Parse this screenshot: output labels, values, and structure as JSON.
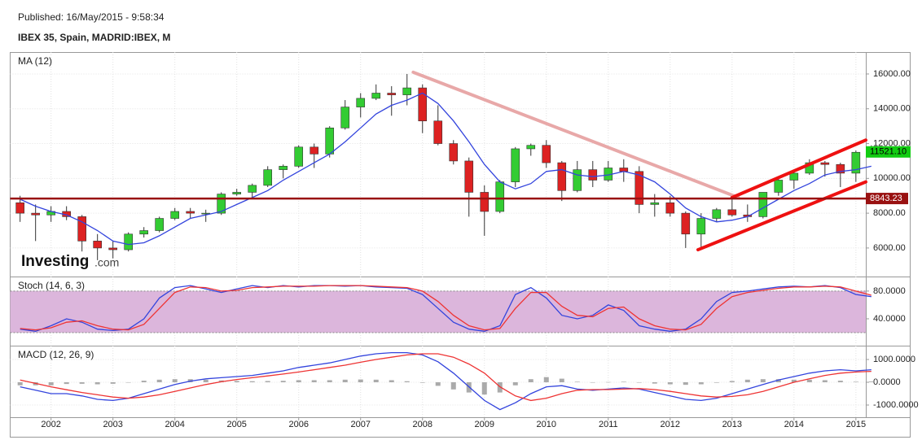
{
  "header": {
    "published": "Published: 16/May/2015 - 9:58:34",
    "title": "IBEX 35, Spain, MADRID:IBEX, M"
  },
  "logo": {
    "brand": "Investing",
    "suffix": ".com"
  },
  "chart_data": [
    {
      "type": "candlestick",
      "title": "MA (12)",
      "x": [
        2001.5,
        2001.75,
        2002,
        2002.25,
        2002.5,
        2002.75,
        2003,
        2003.25,
        2003.5,
        2003.75,
        2004,
        2004.25,
        2004.5,
        2004.75,
        2005,
        2005.25,
        2005.5,
        2005.75,
        2006,
        2006.25,
        2006.5,
        2006.75,
        2007,
        2007.25,
        2007.5,
        2007.75,
        2008,
        2008.25,
        2008.5,
        2008.75,
        2009,
        2009.25,
        2009.5,
        2009.75,
        2010,
        2010.25,
        2010.5,
        2010.75,
        2011,
        2011.25,
        2011.5,
        2011.75,
        2012,
        2012.25,
        2012.5,
        2012.75,
        2013,
        2013.25,
        2013.5,
        2013.75,
        2014,
        2014.25,
        2014.5,
        2014.75,
        2015,
        2015.25
      ],
      "open": [
        8600,
        8000,
        7900,
        8100,
        7800,
        6400,
        6000,
        5900,
        6800,
        7000,
        7700,
        8100,
        8000,
        8000,
        9100,
        9200,
        9600,
        10500,
        10700,
        11800,
        11400,
        12900,
        14100,
        14600,
        14900,
        14800,
        15200,
        13300,
        12000,
        11000,
        9200,
        8100,
        9800,
        11700,
        11900,
        10900,
        9300,
        10500,
        9900,
        10600,
        10400,
        8500,
        8600,
        8000,
        6800,
        7700,
        8200,
        7900,
        7800,
        9200,
        9900,
        10300,
        10900,
        10800,
        10300,
        11500
      ],
      "high": [
        9000,
        8500,
        8400,
        8400,
        7900,
        6800,
        6400,
        6900,
        7200,
        7800,
        8300,
        8300,
        8200,
        9200,
        9400,
        9700,
        10700,
        10800,
        11900,
        12000,
        13000,
        14500,
        14900,
        15400,
        15300,
        16000,
        15400,
        14200,
        12200,
        11200,
        9600,
        9900,
        11800,
        12000,
        12200,
        11000,
        11000,
        11000,
        11000,
        11100,
        10700,
        9100,
        9000,
        8100,
        8000,
        8300,
        8800,
        8500,
        9200,
        10000,
        10400,
        11100,
        11000,
        10900,
        11600,
        11900
      ],
      "low": [
        7500,
        6400,
        7500,
        7600,
        5800,
        5300,
        5400,
        5800,
        6600,
        6900,
        7600,
        7700,
        7500,
        7900,
        9000,
        8900,
        9500,
        10000,
        10600,
        10600,
        11200,
        12800,
        13500,
        14500,
        13600,
        14200,
        12600,
        11900,
        10800,
        7800,
        6700,
        8000,
        9500,
        11300,
        10600,
        8700,
        9200,
        9500,
        9800,
        9800,
        8000,
        7800,
        7800,
        6000,
        5900,
        7500,
        7800,
        7500,
        7700,
        9000,
        9400,
        10200,
        10100,
        9500,
        9800,
        11300
      ],
      "close": [
        8000,
        7900,
        8100,
        7800,
        6400,
        6000,
        5900,
        6800,
        7000,
        7700,
        8100,
        8000,
        8000,
        9100,
        9200,
        9600,
        10500,
        10700,
        11800,
        11400,
        12900,
        14100,
        14600,
        14900,
        14800,
        15200,
        13300,
        12000,
        11000,
        9200,
        8100,
        9800,
        11700,
        11900,
        10900,
        9300,
        10500,
        9900,
        10600,
        10400,
        8500,
        8600,
        8000,
        6800,
        7700,
        8200,
        7900,
        7800,
        9200,
        9900,
        10300,
        10900,
        10800,
        10300,
        11500,
        11521.1
      ],
      "up_color": "#33cc33",
      "down_color": "#dd2222",
      "ma": {
        "color": "#3344dd",
        "values": [
          8800,
          8400,
          8100,
          7900,
          7500,
          7000,
          6400,
          6200,
          6300,
          6700,
          7200,
          7700,
          7900,
          8100,
          8500,
          8900,
          9300,
          9900,
          10400,
          10900,
          11400,
          12100,
          12900,
          13700,
          14200,
          14500,
          14900,
          14300,
          13300,
          12100,
          10800,
          9800,
          9400,
          9700,
          10400,
          10500,
          10200,
          10100,
          10200,
          10400,
          10200,
          9800,
          9100,
          8300,
          7800,
          7500,
          7600,
          7800,
          8300,
          8800,
          9300,
          9700,
          10200,
          10400,
          10500,
          10700
        ]
      },
      "hline": {
        "value": 8843.23,
        "color": "#991111"
      },
      "last_price": {
        "value": 11521.1,
        "label": "11521.10",
        "color": "#11cc11"
      },
      "lines": [
        {
          "color": "#e8a8a8",
          "x": [
            2007.85,
            2013.1
          ],
          "y": [
            16100,
            8900
          ]
        },
        {
          "color": "#ee1111",
          "x": [
            2012.45,
            2015.16
          ],
          "y": [
            5900,
            9800
          ]
        },
        {
          "color": "#ee1111",
          "x": [
            2013.0,
            2015.16
          ],
          "y": [
            8900,
            12200
          ]
        }
      ],
      "xlim": [
        2001.34,
        2015.16
      ],
      "xticks": [
        2002,
        2003,
        2004,
        2005,
        2006,
        2007,
        2008,
        2009,
        2010,
        2011,
        2012,
        2013,
        2014,
        2015
      ],
      "ylim": [
        4360,
        17260
      ],
      "yticks": [
        {
          "value": 6000,
          "label": "6000.00"
        },
        {
          "value": 8000,
          "label": "8000.00"
        },
        {
          "value": 10000,
          "label": "10000.00"
        },
        {
          "value": 12000,
          "label": "12000.00"
        },
        {
          "value": 14000,
          "label": "14000.00"
        },
        {
          "value": 16000,
          "label": "16000.00"
        }
      ],
      "grid": true
    },
    {
      "type": "line",
      "title": "Stoch (14, 6, 3)",
      "band": [
        20,
        80
      ],
      "band_color": "#dcb6dc",
      "series": [
        {
          "color": "#3344dd",
          "values": [
            25,
            22,
            30,
            40,
            35,
            25,
            23,
            25,
            40,
            70,
            85,
            88,
            83,
            78,
            83,
            88,
            85,
            88,
            86,
            88,
            88,
            87,
            88,
            86,
            85,
            84,
            75,
            55,
            35,
            25,
            22,
            30,
            75,
            85,
            70,
            45,
            40,
            45,
            60,
            52,
            30,
            25,
            22,
            25,
            40,
            65,
            78,
            80,
            83,
            86,
            87,
            86,
            88,
            85,
            75,
            72
          ]
        },
        {
          "color": "#ee3333",
          "values": [
            26,
            24,
            27,
            35,
            37,
            30,
            25,
            24,
            32,
            55,
            78,
            86,
            85,
            80,
            81,
            85,
            86,
            87,
            87,
            87,
            88,
            88,
            88,
            87,
            86,
            85,
            80,
            65,
            45,
            30,
            24,
            26,
            55,
            78,
            78,
            58,
            45,
            43,
            55,
            57,
            40,
            30,
            25,
            24,
            32,
            55,
            72,
            78,
            81,
            84,
            86,
            86,
            87,
            86,
            80,
            74
          ]
        }
      ],
      "ylim": [
        1.2,
        101
      ],
      "yticks": [
        {
          "value": 40,
          "label": "40.0000"
        },
        {
          "value": 80,
          "label": "80.0000"
        }
      ],
      "grid": true
    },
    {
      "type": "macd",
      "title": "MACD (12, 26, 9)",
      "series": [
        {
          "color": "#3344dd",
          "values": [
            -200,
            -350,
            -500,
            -500,
            -600,
            -750,
            -800,
            -700,
            -500,
            -300,
            -100,
            50,
            150,
            200,
            250,
            300,
            400,
            500,
            650,
            750,
            850,
            1000,
            1150,
            1250,
            1300,
            1300,
            1200,
            900,
            400,
            -200,
            -800,
            -1200,
            -900,
            -500,
            -200,
            -150,
            -300,
            -350,
            -300,
            -250,
            -300,
            -450,
            -600,
            -750,
            -800,
            -700,
            -500,
            -300,
            -100,
            100,
            250,
            400,
            500,
            550,
            500,
            550
          ]
        },
        {
          "color": "#ee3333",
          "values": [
            100,
            -50,
            -200,
            -330,
            -450,
            -550,
            -650,
            -700,
            -650,
            -550,
            -400,
            -250,
            -100,
            20,
            120,
            200,
            280,
            360,
            450,
            550,
            650,
            750,
            880,
            1000,
            1100,
            1200,
            1250,
            1250,
            1100,
            800,
            400,
            -200,
            -600,
            -800,
            -700,
            -500,
            -350,
            -320,
            -320,
            -300,
            -280,
            -320,
            -400,
            -500,
            -600,
            -650,
            -620,
            -550,
            -400,
            -200,
            0,
            150,
            300,
            400,
            450,
            480
          ]
        }
      ],
      "histogram": {
        "color": "#aaaaaa",
        "values": [
          -300,
          -300,
          -300,
          -170,
          -150,
          -200,
          -150,
          0,
          150,
          250,
          300,
          300,
          250,
          180,
          130,
          100,
          120,
          140,
          200,
          200,
          200,
          250,
          270,
          250,
          200,
          100,
          -50,
          -350,
          -700,
          -1000,
          -1200,
          -1000,
          -300,
          300,
          500,
          350,
          50,
          -30,
          20,
          50,
          -20,
          -130,
          -200,
          -250,
          -200,
          -50,
          120,
          250,
          300,
          300,
          250,
          250,
          200,
          150,
          50,
          70
        ]
      },
      "ylim": [
        -1536,
        1607
      ],
      "yticks": [
        {
          "value": -1000,
          "label": "-1000.0000"
        },
        {
          "value": 0,
          "label": "0.0000"
        },
        {
          "value": 1000,
          "label": "1000.0000"
        }
      ],
      "grid": true
    }
  ]
}
